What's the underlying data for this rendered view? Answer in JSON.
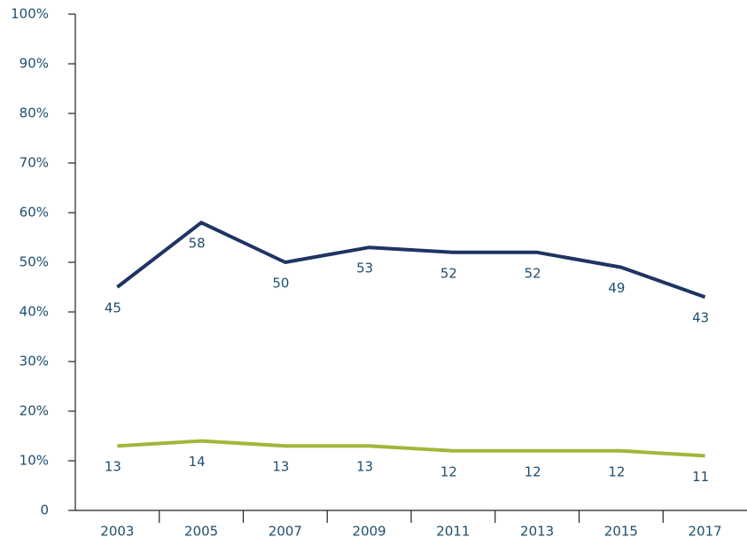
{
  "chart_data": {
    "type": "line",
    "categories": [
      "2003",
      "2005",
      "2007",
      "2009",
      "2011",
      "2013",
      "2015",
      "2017"
    ],
    "series": [
      {
        "color": "#1f3464",
        "values": [
          45,
          58,
          50,
          53,
          52,
          52,
          49,
          43
        ]
      },
      {
        "color": "#a4b53a",
        "values": [
          13,
          14,
          13,
          13,
          12,
          12,
          12,
          11
        ]
      }
    ],
    "ylim": [
      0,
      100
    ],
    "yticks": [
      0,
      {
        "value": 10,
        "label": "10%"
      },
      {
        "value": 20,
        "label": "20%"
      },
      {
        "value": 30,
        "label": "30%"
      },
      {
        "value": 40,
        "label": "40%"
      },
      {
        "value": 50,
        "label": "50%"
      },
      {
        "value": 60,
        "label": "60%"
      },
      {
        "value": 70,
        "label": "70%"
      },
      {
        "value": 80,
        "label": "80%"
      },
      {
        "value": 90,
        "label": "90%"
      },
      {
        "value": 100,
        "label": "100%"
      }
    ],
    "grid": false
  }
}
